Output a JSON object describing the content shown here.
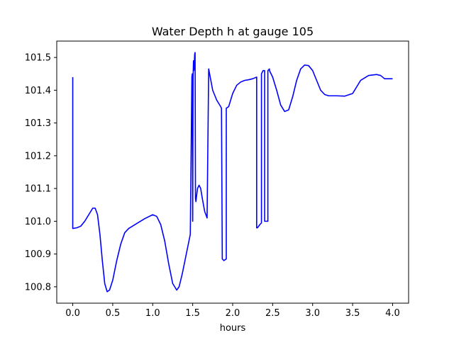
{
  "chart_data": {
    "type": "line",
    "title": "Water Depth h at gauge 105",
    "xlabel": "hours",
    "ylabel": "",
    "xlim": [
      -0.2,
      4.2
    ],
    "ylim": [
      100.75,
      101.55
    ],
    "grid": false,
    "x_ticks": [
      0.0,
      0.5,
      1.0,
      1.5,
      2.0,
      2.5,
      3.0,
      3.5,
      4.0
    ],
    "x_tick_labels": [
      "0.0",
      "0.5",
      "1.0",
      "1.5",
      "2.0",
      "2.5",
      "3.0",
      "3.5",
      "4.0"
    ],
    "y_ticks": [
      100.8,
      100.9,
      101.0,
      101.1,
      101.2,
      101.3,
      101.4,
      101.5
    ],
    "y_tick_labels": [
      "100.8",
      "100.9",
      "101.0",
      "101.1",
      "101.2",
      "101.3",
      "101.4",
      "101.5"
    ],
    "series": [
      {
        "color": "#0000ff",
        "x": [
          0.0,
          0.0,
          0.05,
          0.1,
          0.15,
          0.2,
          0.25,
          0.28,
          0.31,
          0.34,
          0.37,
          0.4,
          0.43,
          0.46,
          0.5,
          0.55,
          0.6,
          0.65,
          0.7,
          0.8,
          0.9,
          1.0,
          1.05,
          1.1,
          1.15,
          1.2,
          1.25,
          1.3,
          1.33,
          1.37,
          1.42,
          1.47,
          1.49,
          1.495,
          1.5,
          1.505,
          1.51,
          1.515,
          1.52,
          1.525,
          1.53,
          1.535,
          1.54,
          1.55,
          1.56,
          1.58,
          1.6,
          1.62,
          1.65,
          1.68,
          1.7,
          1.7,
          1.75,
          1.8,
          1.85,
          1.86,
          1.87,
          1.87,
          1.89,
          1.92,
          1.92,
          1.95,
          2.0,
          2.05,
          2.1,
          2.15,
          2.2,
          2.25,
          2.3,
          2.3,
          2.31,
          2.34,
          2.36,
          2.36,
          2.38,
          2.4,
          2.4,
          2.42,
          2.44,
          2.44,
          2.46,
          2.46,
          2.5,
          2.55,
          2.6,
          2.65,
          2.7,
          2.75,
          2.8,
          2.85,
          2.9,
          2.95,
          3.0,
          3.05,
          3.1,
          3.15,
          3.2,
          3.3,
          3.4,
          3.5,
          3.55,
          3.6,
          3.7,
          3.8,
          3.85,
          3.9,
          4.0
        ],
        "y": [
          101.44,
          100.978,
          100.98,
          100.985,
          101.0,
          101.02,
          101.04,
          101.04,
          101.02,
          100.96,
          100.88,
          100.81,
          100.785,
          100.79,
          100.82,
          100.88,
          100.93,
          100.965,
          100.978,
          100.993,
          101.008,
          101.02,
          101.015,
          100.99,
          100.94,
          100.87,
          100.81,
          100.79,
          100.8,
          100.84,
          100.9,
          100.96,
          101.44,
          101.45,
          101.0,
          101.44,
          101.49,
          101.46,
          101.48,
          101.51,
          101.515,
          101.07,
          101.06,
          101.08,
          101.1,
          101.11,
          101.1,
          101.07,
          101.03,
          101.01,
          101.465,
          101.465,
          101.4,
          101.37,
          101.35,
          101.345,
          100.885,
          100.885,
          100.88,
          100.885,
          101.345,
          101.35,
          101.39,
          101.415,
          101.425,
          101.43,
          101.432,
          101.435,
          101.44,
          100.98,
          100.98,
          100.99,
          100.995,
          101.45,
          101.46,
          101.46,
          101.0,
          101.0,
          101.0,
          101.46,
          101.465,
          101.46,
          101.44,
          101.4,
          101.355,
          101.335,
          101.34,
          101.38,
          101.43,
          101.465,
          101.477,
          101.475,
          101.46,
          101.43,
          101.4,
          101.387,
          101.383,
          101.383,
          101.382,
          101.39,
          101.41,
          101.43,
          101.445,
          101.448,
          101.445,
          101.435,
          101.435
        ]
      }
    ]
  }
}
